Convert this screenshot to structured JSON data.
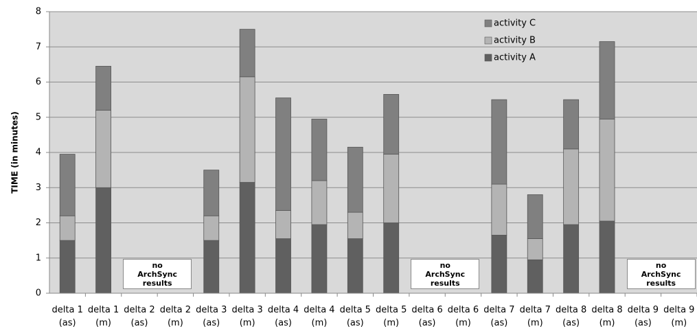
{
  "chart_data": {
    "type": "stacked_bar",
    "y_label": "TIME (in minutes)",
    "categories": [
      "delta 1 (as)",
      "delta 1 (m)",
      "delta 2 (as)",
      "delta 2 (m)",
      "delta 3 (as)",
      "delta 3 (m)",
      "delta 4 (as)",
      "delta 4 (m)",
      "delta 5 (as)",
      "delta 5 (m)",
      "delta 6 (as)",
      "delta 6 (m)",
      "delta 7 (as)",
      "delta 7 (m)",
      "delta 8 (as)",
      "delta 8 (m)",
      "delta 9 (as)",
      "delta 9 (m)"
    ],
    "series": [
      {
        "name": "activity A",
        "color": "#606060",
        "values": [
          1.5,
          3.0,
          null,
          null,
          1.5,
          3.15,
          1.55,
          1.95,
          1.55,
          2.0,
          null,
          null,
          1.65,
          0.95,
          1.95,
          2.05,
          null,
          null
        ]
      },
      {
        "name": "activity B",
        "color": "#b4b4b4",
        "values": [
          0.7,
          2.2,
          null,
          null,
          0.7,
          3.0,
          0.8,
          1.25,
          0.75,
          1.95,
          null,
          null,
          1.45,
          0.6,
          2.15,
          2.9,
          null,
          null
        ]
      },
      {
        "name": "activity C",
        "color": "#808080",
        "values": [
          1.75,
          1.25,
          null,
          null,
          1.3,
          1.35,
          3.2,
          1.75,
          1.85,
          1.7,
          null,
          null,
          2.4,
          1.25,
          1.4,
          2.2,
          null,
          null
        ]
      }
    ],
    "annotations": [
      "no ArchSync results",
      "no ArchSync results",
      "no ArchSync results"
    ],
    "ylim": [
      0,
      8
    ],
    "yticks": [
      0,
      1,
      2,
      3,
      4,
      5,
      6,
      7,
      8
    ],
    "grid": true,
    "legend": "top-right"
  }
}
